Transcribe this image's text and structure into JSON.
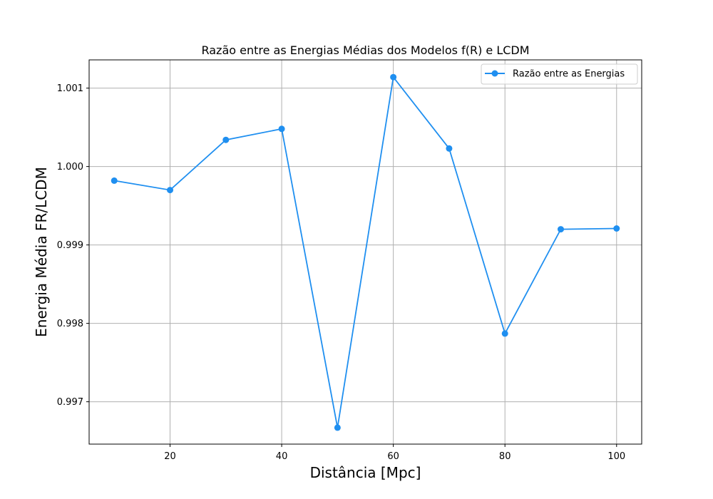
{
  "chart_data": {
    "type": "line",
    "title": "Razão entre as Energias Médias dos Modelos f(R) e LCDM",
    "xlabel": "Distância [Mpc]",
    "ylabel": "Energia Média  FR/LCDM",
    "x": [
      10,
      20,
      30,
      40,
      50,
      60,
      70,
      80,
      90,
      100
    ],
    "series": [
      {
        "name": "Razão entre as Energias",
        "values": [
          0.99982,
          0.9997,
          1.00034,
          1.00048,
          0.99667,
          1.00114,
          1.00023,
          0.99787,
          0.9992,
          0.99921
        ],
        "color": "#1f8ff0"
      }
    ],
    "xlim": [
      5.5,
      104.5
    ],
    "ylim": [
      0.99646,
      1.00136
    ],
    "xticks": [
      20,
      40,
      60,
      80,
      100
    ],
    "xtick_labels": [
      "20",
      "40",
      "60",
      "80",
      "100"
    ],
    "yticks": [
      0.997,
      0.998,
      0.999,
      1.0,
      1.001
    ],
    "ytick_labels": [
      "0.997",
      "0.998",
      "0.999",
      "1.000",
      "1.001"
    ],
    "grid": true,
    "legend_position": "top-right"
  }
}
